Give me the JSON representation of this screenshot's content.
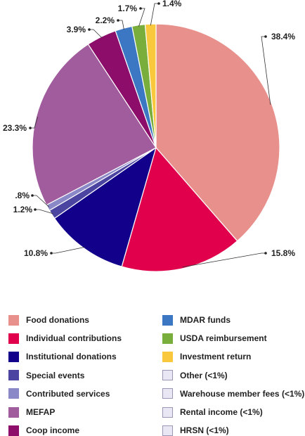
{
  "chart_data": {
    "type": "pie",
    "categories": [
      "Food donations",
      "Individual contributions",
      "Institutional donations",
      "Special events",
      "Contributed services",
      "MEFAP",
      "Coop income",
      "MDAR funds",
      "USDA reimbursement",
      "Investment return",
      "Other (<1%)",
      "Warehouse member fees (<1%)",
      "Rental income (<1%)",
      "HRSN (<1%)"
    ],
    "values": [
      38.4,
      15.8,
      10.8,
      1.2,
      0.8,
      23.3,
      3.9,
      2.2,
      1.7,
      1.4,
      null,
      null,
      null,
      null
    ],
    "data_labels": [
      "38.4%",
      "15.8%",
      "10.8%",
      "1.2%",
      ".8%",
      "23.3%",
      "3.9%",
      "2.2%",
      "1.7%",
      "1.4%",
      "",
      "",
      "",
      ""
    ],
    "colors": [
      "#e8908c",
      "#e0004b",
      "#12008a",
      "#4b44a0",
      "#8b88c8",
      "#a05c9c",
      "#8c0d6a",
      "#3b77c2",
      "#7aae3c",
      "#f9c83c",
      "#eae7f4",
      "#eae7f4",
      "#eae7f4",
      "#eae7f4"
    ],
    "legend_position": "bottom",
    "legend_columns": 2,
    "title": "",
    "start_angle": "12 o'clock",
    "direction": "clockwise"
  }
}
